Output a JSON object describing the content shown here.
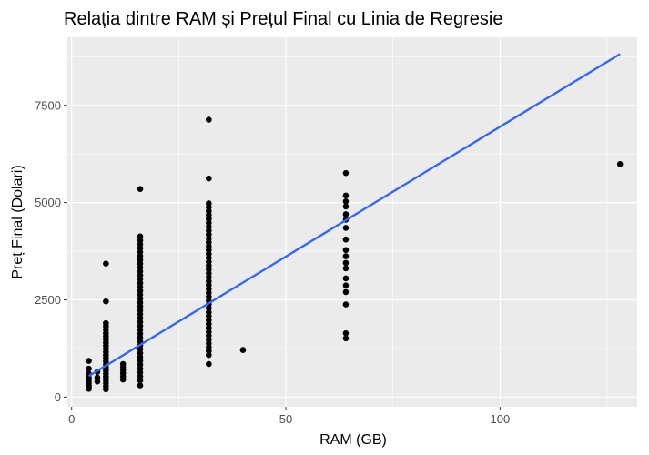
{
  "chart_data": {
    "type": "scatter",
    "title": "Relația dintre RAM și Prețul Final cu Linia de Regresie",
    "xlabel": "RAM (GB)",
    "ylabel": "Preț Final (Dolari)",
    "xlim": [
      -1,
      132
    ],
    "ylim": [
      -250,
      9250
    ],
    "x_ticks": [
      0,
      50,
      100
    ],
    "y_ticks": [
      0,
      2500,
      5000,
      7500
    ],
    "x_tick_labels": [
      "0",
      "50",
      "100"
    ],
    "y_tick_labels": [
      "0",
      "2500",
      "5000",
      "7500"
    ],
    "grid": true,
    "legend": "none",
    "colors": {
      "panel_background": "#ebebeb",
      "grid": "#ffffff",
      "points": "#000000",
      "regression_line": "#3366ff"
    },
    "points": [
      {
        "x": 4,
        "y": 930
      },
      {
        "x": 4,
        "y": 730
      },
      {
        "x": 4,
        "y": 600
      },
      {
        "x": 4,
        "y": 500
      },
      {
        "x": 4,
        "y": 420
      },
      {
        "x": 4,
        "y": 360
      },
      {
        "x": 4,
        "y": 300
      },
      {
        "x": 4,
        "y": 250
      },
      {
        "x": 4,
        "y": 210
      },
      {
        "x": 6,
        "y": 650
      },
      {
        "x": 6,
        "y": 500
      },
      {
        "x": 6,
        "y": 400
      },
      {
        "x": 8,
        "y": 3430
      },
      {
        "x": 8,
        "y": 2460
      },
      {
        "x": 8,
        "y": 1900
      },
      {
        "x": 8,
        "y": 1820
      },
      {
        "x": 8,
        "y": 1730
      },
      {
        "x": 8,
        "y": 1640
      },
      {
        "x": 8,
        "y": 1560
      },
      {
        "x": 8,
        "y": 1480
      },
      {
        "x": 8,
        "y": 1400
      },
      {
        "x": 8,
        "y": 1320
      },
      {
        "x": 8,
        "y": 1240
      },
      {
        "x": 8,
        "y": 1160
      },
      {
        "x": 8,
        "y": 1080
      },
      {
        "x": 8,
        "y": 1000
      },
      {
        "x": 8,
        "y": 920
      },
      {
        "x": 8,
        "y": 840
      },
      {
        "x": 8,
        "y": 760
      },
      {
        "x": 8,
        "y": 680
      },
      {
        "x": 8,
        "y": 600
      },
      {
        "x": 8,
        "y": 520
      },
      {
        "x": 8,
        "y": 440
      },
      {
        "x": 8,
        "y": 360
      },
      {
        "x": 8,
        "y": 280
      },
      {
        "x": 8,
        "y": 200
      },
      {
        "x": 12,
        "y": 850
      },
      {
        "x": 12,
        "y": 770
      },
      {
        "x": 12,
        "y": 690
      },
      {
        "x": 12,
        "y": 610
      },
      {
        "x": 12,
        "y": 530
      },
      {
        "x": 12,
        "y": 450
      },
      {
        "x": 16,
        "y": 5350
      },
      {
        "x": 16,
        "y": 4130
      },
      {
        "x": 16,
        "y": 4030
      },
      {
        "x": 16,
        "y": 3930
      },
      {
        "x": 16,
        "y": 3830
      },
      {
        "x": 16,
        "y": 3730
      },
      {
        "x": 16,
        "y": 3630
      },
      {
        "x": 16,
        "y": 3530
      },
      {
        "x": 16,
        "y": 3430
      },
      {
        "x": 16,
        "y": 3330
      },
      {
        "x": 16,
        "y": 3230
      },
      {
        "x": 16,
        "y": 3130
      },
      {
        "x": 16,
        "y": 3030
      },
      {
        "x": 16,
        "y": 2930
      },
      {
        "x": 16,
        "y": 2830
      },
      {
        "x": 16,
        "y": 2730
      },
      {
        "x": 16,
        "y": 2630
      },
      {
        "x": 16,
        "y": 2530
      },
      {
        "x": 16,
        "y": 2430
      },
      {
        "x": 16,
        "y": 2330
      },
      {
        "x": 16,
        "y": 2230
      },
      {
        "x": 16,
        "y": 2130
      },
      {
        "x": 16,
        "y": 2030
      },
      {
        "x": 16,
        "y": 1930
      },
      {
        "x": 16,
        "y": 1830
      },
      {
        "x": 16,
        "y": 1730
      },
      {
        "x": 16,
        "y": 1630
      },
      {
        "x": 16,
        "y": 1530
      },
      {
        "x": 16,
        "y": 1430
      },
      {
        "x": 16,
        "y": 1330
      },
      {
        "x": 16,
        "y": 1230
      },
      {
        "x": 16,
        "y": 1130
      },
      {
        "x": 16,
        "y": 1030
      },
      {
        "x": 16,
        "y": 930
      },
      {
        "x": 16,
        "y": 830
      },
      {
        "x": 16,
        "y": 730
      },
      {
        "x": 16,
        "y": 630
      },
      {
        "x": 16,
        "y": 530
      },
      {
        "x": 16,
        "y": 430
      },
      {
        "x": 16,
        "y": 300
      },
      {
        "x": 32,
        "y": 7130
      },
      {
        "x": 32,
        "y": 5620
      },
      {
        "x": 32,
        "y": 4980
      },
      {
        "x": 32,
        "y": 4880
      },
      {
        "x": 32,
        "y": 4780
      },
      {
        "x": 32,
        "y": 4680
      },
      {
        "x": 32,
        "y": 4580
      },
      {
        "x": 32,
        "y": 4480
      },
      {
        "x": 32,
        "y": 4380
      },
      {
        "x": 32,
        "y": 4280
      },
      {
        "x": 32,
        "y": 4180
      },
      {
        "x": 32,
        "y": 4080
      },
      {
        "x": 32,
        "y": 3980
      },
      {
        "x": 32,
        "y": 3880
      },
      {
        "x": 32,
        "y": 3780
      },
      {
        "x": 32,
        "y": 3680
      },
      {
        "x": 32,
        "y": 3580
      },
      {
        "x": 32,
        "y": 3480
      },
      {
        "x": 32,
        "y": 3380
      },
      {
        "x": 32,
        "y": 3280
      },
      {
        "x": 32,
        "y": 3180
      },
      {
        "x": 32,
        "y": 3080
      },
      {
        "x": 32,
        "y": 2980
      },
      {
        "x": 32,
        "y": 2880
      },
      {
        "x": 32,
        "y": 2780
      },
      {
        "x": 32,
        "y": 2680
      },
      {
        "x": 32,
        "y": 2580
      },
      {
        "x": 32,
        "y": 2480
      },
      {
        "x": 32,
        "y": 2380
      },
      {
        "x": 32,
        "y": 2280
      },
      {
        "x": 32,
        "y": 2180
      },
      {
        "x": 32,
        "y": 2080
      },
      {
        "x": 32,
        "y": 1980
      },
      {
        "x": 32,
        "y": 1880
      },
      {
        "x": 32,
        "y": 1780
      },
      {
        "x": 32,
        "y": 1680
      },
      {
        "x": 32,
        "y": 1580
      },
      {
        "x": 32,
        "y": 1480
      },
      {
        "x": 32,
        "y": 1380
      },
      {
        "x": 32,
        "y": 1280
      },
      {
        "x": 32,
        "y": 1180
      },
      {
        "x": 32,
        "y": 1080
      },
      {
        "x": 32,
        "y": 850
      },
      {
        "x": 40,
        "y": 1210
      },
      {
        "x": 64,
        "y": 5760
      },
      {
        "x": 64,
        "y": 5180
      },
      {
        "x": 64,
        "y": 5030
      },
      {
        "x": 64,
        "y": 4900
      },
      {
        "x": 64,
        "y": 4700
      },
      {
        "x": 64,
        "y": 4560
      },
      {
        "x": 64,
        "y": 4350
      },
      {
        "x": 64,
        "y": 4050
      },
      {
        "x": 64,
        "y": 3780
      },
      {
        "x": 64,
        "y": 3620
      },
      {
        "x": 64,
        "y": 3450
      },
      {
        "x": 64,
        "y": 3310
      },
      {
        "x": 64,
        "y": 3050
      },
      {
        "x": 64,
        "y": 2870
      },
      {
        "x": 64,
        "y": 2700
      },
      {
        "x": 64,
        "y": 2380
      },
      {
        "x": 64,
        "y": 1640
      },
      {
        "x": 64,
        "y": 1510
      },
      {
        "x": 128,
        "y": 5990
      }
    ],
    "regression_line": {
      "x": [
        4,
        128
      ],
      "y": [
        540,
        8820
      ]
    }
  }
}
